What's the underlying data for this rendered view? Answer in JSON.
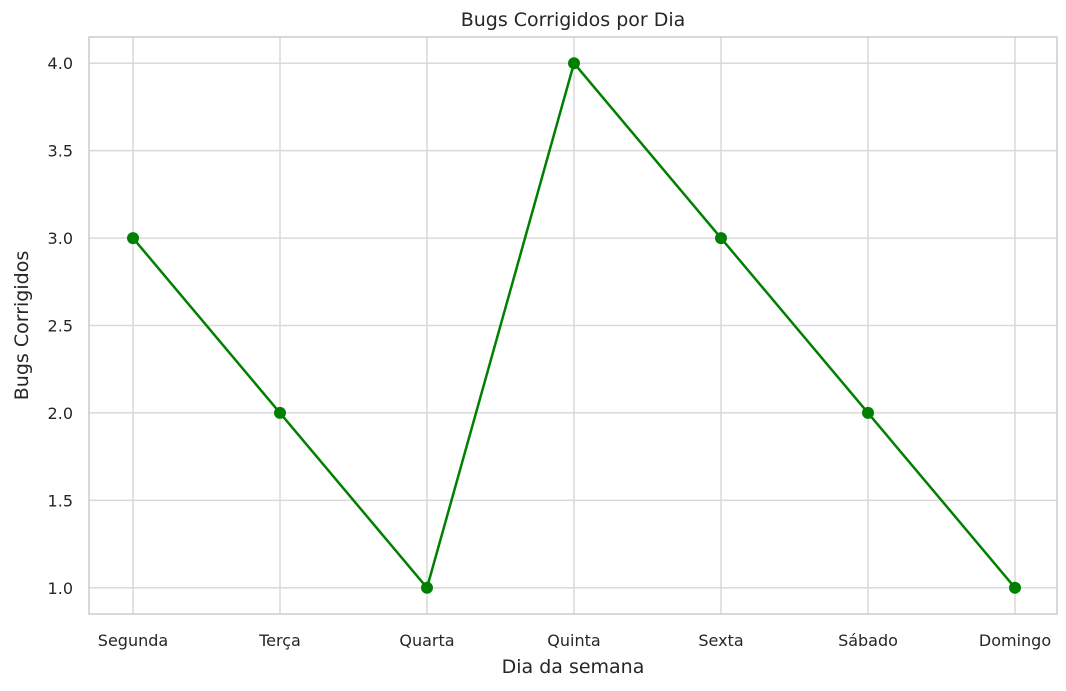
{
  "chart_data": {
    "type": "line",
    "title": "Bugs Corrigidos por Dia",
    "xlabel": "Dia da semana",
    "ylabel": "Bugs Corrigidos",
    "categories": [
      "Segunda",
      "Terça",
      "Quarta",
      "Quinta",
      "Sexta",
      "Sábado",
      "Domingo"
    ],
    "series": [
      {
        "values": [
          3,
          2,
          1,
          4,
          3,
          2,
          1
        ],
        "color": "#008000"
      }
    ],
    "ylim": [
      0.85,
      4.15
    ],
    "yticks": [
      "1.0",
      "1.5",
      "2.0",
      "2.5",
      "3.0",
      "3.5",
      "4.0"
    ],
    "grid": true,
    "marker": "circle"
  }
}
